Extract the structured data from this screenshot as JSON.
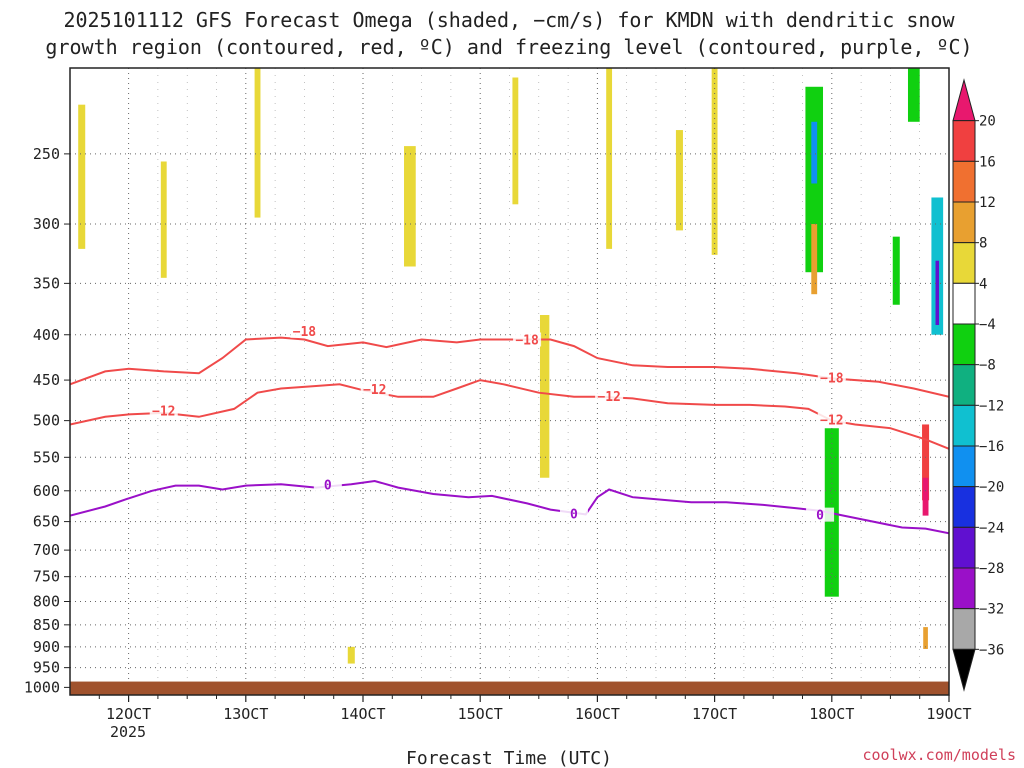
{
  "chart_data": {
    "type": "heatmap",
    "title_line1": "2025101112 GFS Forecast Omega (shaded, −cm/s) for KMDN with dendritic snow",
    "title_line2": "growth region (contoured, red, ºC) and freezing level (contoured, purple, ºC)",
    "xlabel": "Forecast Time (UTC)",
    "credit": "coolwx.com/models",
    "x_ticks": [
      {
        "label": "12OCT",
        "day": 12
      },
      {
        "label": "13OCT",
        "day": 13
      },
      {
        "label": "14OCT",
        "day": 14
      },
      {
        "label": "15OCT",
        "day": 15
      },
      {
        "label": "16OCT",
        "day": 16
      },
      {
        "label": "17OCT",
        "day": 17
      },
      {
        "label": "18OCT",
        "day": 18
      },
      {
        "label": "19OCT",
        "day": 19
      }
    ],
    "year_label": "2025",
    "xlim_days": [
      11.5,
      19.0
    ],
    "y_ticks": [
      250,
      300,
      350,
      400,
      450,
      500,
      550,
      600,
      650,
      700,
      750,
      800,
      850,
      900,
      950,
      1000
    ],
    "ylim_hpa": [
      200,
      1020
    ],
    "ground_top_hpa": 985,
    "colorbar": {
      "levels": [
        20,
        16,
        12,
        8,
        4,
        -4,
        -8,
        -12,
        -16,
        -20,
        -24,
        -28,
        -32,
        -36
      ],
      "colors": [
        "#e8186e",
        "#f04040",
        "#f07030",
        "#e8a030",
        "#e8d838",
        "#ffffff",
        "#10d010",
        "#10b080",
        "#10c0d0",
        "#1090f0",
        "#1830e0",
        "#6010d0",
        "#9a10c8",
        "#a8a8a8",
        "#000000"
      ]
    },
    "series": [
      {
        "name": "-18",
        "kind": "dendritic",
        "color": "#f04a4a",
        "label": "−18",
        "points": [
          [
            11.5,
            455
          ],
          [
            11.8,
            440
          ],
          [
            12.0,
            437
          ],
          [
            12.3,
            440
          ],
          [
            12.6,
            442
          ],
          [
            12.8,
            425
          ],
          [
            13.0,
            405
          ],
          [
            13.3,
            403
          ],
          [
            13.5,
            405
          ],
          [
            13.7,
            412
          ],
          [
            14.0,
            408
          ],
          [
            14.2,
            413
          ],
          [
            14.5,
            405
          ],
          [
            14.8,
            408
          ],
          [
            15.0,
            405
          ],
          [
            15.3,
            405
          ],
          [
            15.6,
            405
          ],
          [
            15.8,
            412
          ],
          [
            16.0,
            425
          ],
          [
            16.3,
            433
          ],
          [
            16.6,
            435
          ],
          [
            17.0,
            435
          ],
          [
            17.3,
            437
          ],
          [
            17.7,
            442
          ],
          [
            18.0,
            448
          ],
          [
            18.4,
            452
          ],
          [
            18.7,
            460
          ],
          [
            19.0,
            470
          ]
        ],
        "label_at": [
          [
            13.5,
            397
          ],
          [
            15.4,
            406
          ],
          [
            18.0,
            448
          ]
        ]
      },
      {
        "name": "-12",
        "kind": "dendritic",
        "color": "#f04a4a",
        "label": "−12",
        "points": [
          [
            11.5,
            505
          ],
          [
            11.8,
            495
          ],
          [
            12.0,
            492
          ],
          [
            12.3,
            490
          ],
          [
            12.6,
            495
          ],
          [
            12.9,
            485
          ],
          [
            13.1,
            465
          ],
          [
            13.3,
            460
          ],
          [
            13.6,
            457
          ],
          [
            13.8,
            455
          ],
          [
            14.0,
            462
          ],
          [
            14.3,
            470
          ],
          [
            14.6,
            470
          ],
          [
            14.8,
            460
          ],
          [
            15.0,
            450
          ],
          [
            15.2,
            455
          ],
          [
            15.5,
            465
          ],
          [
            15.8,
            470
          ],
          [
            16.0,
            470
          ],
          [
            16.3,
            472
          ],
          [
            16.6,
            478
          ],
          [
            17.0,
            480
          ],
          [
            17.3,
            480
          ],
          [
            17.6,
            482
          ],
          [
            17.8,
            485
          ],
          [
            18.0,
            500
          ],
          [
            18.2,
            505
          ],
          [
            18.5,
            510
          ],
          [
            18.8,
            525
          ],
          [
            19.0,
            538
          ]
        ],
        "label_at": [
          [
            12.3,
            488
          ],
          [
            14.1,
            462
          ],
          [
            16.1,
            470
          ],
          [
            18.0,
            500
          ]
        ]
      },
      {
        "name": "0",
        "kind": "freezing",
        "color": "#9a10c8",
        "label": "0",
        "points": [
          [
            11.5,
            640
          ],
          [
            11.8,
            625
          ],
          [
            12.0,
            612
          ],
          [
            12.2,
            600
          ],
          [
            12.4,
            592
          ],
          [
            12.6,
            592
          ],
          [
            12.8,
            598
          ],
          [
            13.0,
            592
          ],
          [
            13.3,
            590
          ],
          [
            13.6,
            595
          ],
          [
            13.9,
            590
          ],
          [
            14.1,
            585
          ],
          [
            14.3,
            595
          ],
          [
            14.6,
            605
          ],
          [
            14.9,
            610
          ],
          [
            15.1,
            608
          ],
          [
            15.4,
            620
          ],
          [
            15.6,
            630
          ],
          [
            15.9,
            638
          ],
          [
            16.0,
            610
          ],
          [
            16.1,
            598
          ],
          [
            16.3,
            610
          ],
          [
            16.6,
            615
          ],
          [
            16.8,
            618
          ],
          [
            17.1,
            618
          ],
          [
            17.4,
            622
          ],
          [
            17.7,
            628
          ],
          [
            17.9,
            632
          ],
          [
            18.1,
            640
          ],
          [
            18.3,
            648
          ],
          [
            18.6,
            660
          ],
          [
            18.8,
            662
          ],
          [
            19.0,
            670
          ]
        ],
        "label_at": [
          [
            13.7,
            592
          ],
          [
            15.8,
            638
          ],
          [
            17.9,
            640
          ]
        ]
      }
    ],
    "omega_cells": [
      {
        "x": 11.6,
        "p": 270,
        "w": 0.06,
        "h": 100,
        "v": 4
      },
      {
        "x": 12.3,
        "p": 300,
        "w": 0.05,
        "h": 90,
        "v": 4
      },
      {
        "x": 13.1,
        "p": 235,
        "w": 0.05,
        "h": 120,
        "v": 4
      },
      {
        "x": 14.4,
        "p": 290,
        "w": 0.1,
        "h": 90,
        "v": 4
      },
      {
        "x": 15.3,
        "p": 245,
        "w": 0.05,
        "h": 80,
        "v": 4
      },
      {
        "x": 15.55,
        "p": 480,
        "w": 0.08,
        "h": 200,
        "v": 4
      },
      {
        "x": 16.1,
        "p": 260,
        "w": 0.05,
        "h": 120,
        "v": 4
      },
      {
        "x": 16.7,
        "p": 270,
        "w": 0.06,
        "h": 70,
        "v": 4
      },
      {
        "x": 17.0,
        "p": 260,
        "w": 0.05,
        "h": 130,
        "v": 4
      },
      {
        "x": 17.85,
        "p": 275,
        "w": 0.15,
        "h": 130,
        "v": -8
      },
      {
        "x": 17.85,
        "p": 250,
        "w": 0.05,
        "h": 40,
        "v": -20
      },
      {
        "x": 17.85,
        "p": 330,
        "w": 0.05,
        "h": 60,
        "v": 8
      },
      {
        "x": 18.0,
        "p": 650,
        "w": 0.12,
        "h": 280,
        "v": -8
      },
      {
        "x": 18.55,
        "p": 340,
        "w": 0.06,
        "h": 60,
        "v": -8
      },
      {
        "x": 18.9,
        "p": 340,
        "w": 0.1,
        "h": 120,
        "v": -16
      },
      {
        "x": 18.9,
        "p": 360,
        "w": 0.03,
        "h": 60,
        "v": -28
      },
      {
        "x": 18.8,
        "p": 560,
        "w": 0.06,
        "h": 110,
        "v": 16
      },
      {
        "x": 18.8,
        "p": 610,
        "w": 0.05,
        "h": 60,
        "v": 20
      },
      {
        "x": 18.7,
        "p": 170,
        "w": 0.1,
        "h": 120,
        "v": -8
      },
      {
        "x": 13.9,
        "p": 920,
        "w": 0.06,
        "h": 40,
        "v": 4
      },
      {
        "x": 18.8,
        "p": 880,
        "w": 0.04,
        "h": 50,
        "v": 8
      }
    ]
  }
}
